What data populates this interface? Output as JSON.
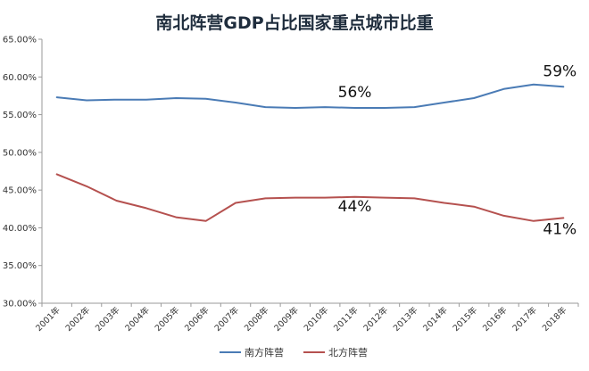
{
  "chart_data": {
    "type": "line",
    "title": "南北阵营GDP占比国家重点城市比重",
    "categories": [
      "2001年",
      "2002年",
      "2003年",
      "2004年",
      "2005年",
      "2006年",
      "2007年",
      "2008年",
      "2009年",
      "2010年",
      "2011年",
      "2012年",
      "2013年",
      "2014年",
      "2015年",
      "2016年",
      "2017年",
      "2018年"
    ],
    "ylim": [
      30,
      65
    ],
    "ytick_labels": [
      "65.00%",
      "60.00%",
      "55.00%",
      "50.00%",
      "45.00%",
      "40.00%",
      "35.00%",
      "30.00%"
    ],
    "series": [
      {
        "name": "南方阵营",
        "color": "#4a7bb5",
        "values": [
          57.3,
          56.9,
          57.0,
          57.0,
          57.2,
          57.1,
          56.6,
          56.0,
          55.9,
          56.0,
          55.9,
          55.9,
          56.0,
          56.6,
          57.2,
          58.4,
          59.0,
          58.7
        ]
      },
      {
        "name": "北方阵营",
        "color": "#b5514f",
        "values": [
          47.1,
          45.5,
          43.6,
          42.6,
          41.4,
          40.9,
          43.3,
          43.9,
          44.0,
          44.0,
          44.1,
          44.0,
          43.9,
          43.3,
          42.8,
          41.6,
          40.9,
          41.3
        ]
      }
    ],
    "annotations": [
      {
        "text": "56%",
        "series": 0,
        "category": "2011年"
      },
      {
        "text": "59%",
        "series": 0,
        "category": "2018年"
      },
      {
        "text": "44%",
        "series": 1,
        "category": "2011年"
      },
      {
        "text": "41%",
        "series": 1,
        "category": "2018年"
      }
    ],
    "legend_position": "bottom",
    "grid": false
  }
}
